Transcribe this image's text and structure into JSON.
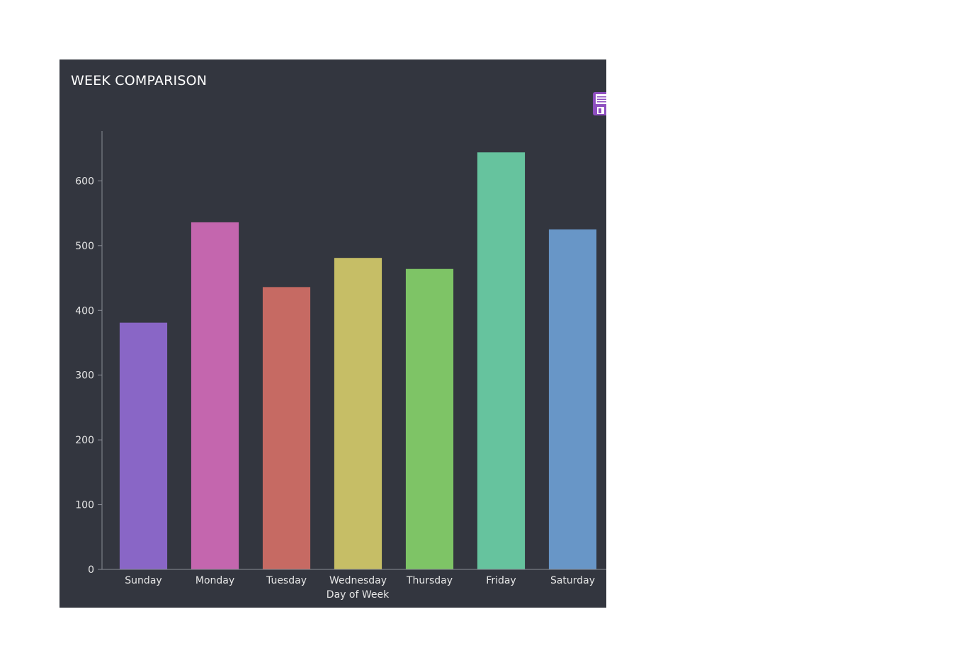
{
  "chart_data": {
    "type": "bar",
    "title": "WEEK COMPARISON",
    "xlabel": "Day of Week",
    "ylabel": "",
    "categories": [
      "Sunday",
      "Monday",
      "Tuesday",
      "Wednesday",
      "Thursday",
      "Friday",
      "Saturday"
    ],
    "values": [
      381,
      536,
      436,
      481,
      464,
      644,
      525
    ],
    "colors": [
      "#8966c6",
      "#c466ae",
      "#c66a63",
      "#c6be66",
      "#7ec466",
      "#66c39e",
      "#6896c7"
    ],
    "yticks": [
      0,
      100,
      200,
      300,
      400,
      500,
      600
    ],
    "ylim": [
      0,
      677
    ],
    "grid": false,
    "legend": "none"
  },
  "toolbar": {
    "save_icon": "save-icon"
  },
  "colors": {
    "background": "#33363f",
    "text": "#e6e6e6",
    "axis": "#8a8d96"
  }
}
